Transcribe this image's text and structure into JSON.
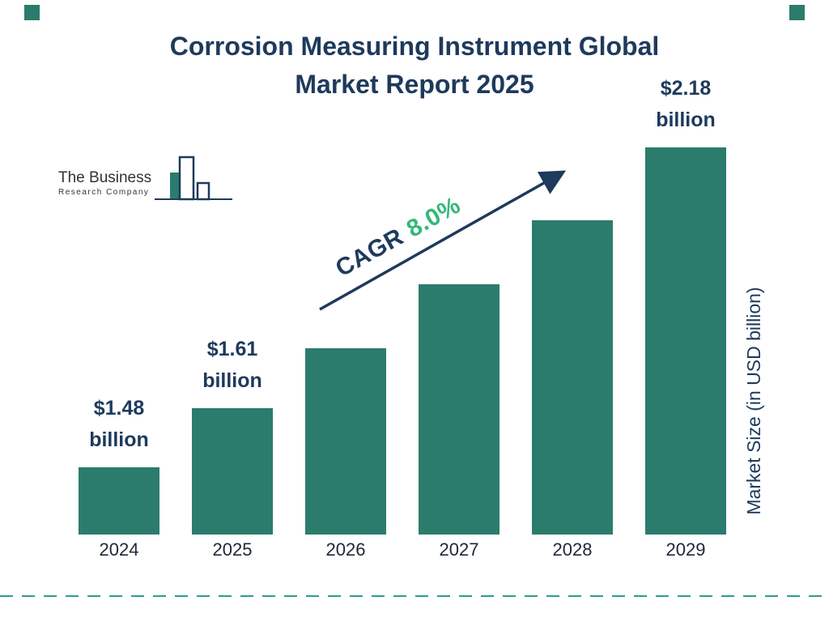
{
  "page": {
    "title_line1": "Corrosion Measuring Instrument Global",
    "title_line2": "Market Report 2025"
  },
  "logo": {
    "line1": "The Business",
    "line2": "Research Company"
  },
  "cagr": {
    "label": "CAGR",
    "value": "8.0%"
  },
  "chart_data": {
    "type": "bar",
    "title": "Corrosion Measuring Instrument Global Market Report 2025",
    "categories": [
      "2024",
      "2025",
      "2026",
      "2027",
      "2028",
      "2029"
    ],
    "values": [
      1.48,
      1.61,
      1.74,
      1.88,
      2.02,
      2.18
    ],
    "unit": "USD billion",
    "ylabel": "Market Size (in USD billion)",
    "cagr": "8.0%",
    "bar_color": "#2B7C6C",
    "legend": "none",
    "grid": "off",
    "labels": [
      {
        "index": 0,
        "amount": "$1.48",
        "unit": "billion"
      },
      {
        "index": 1,
        "amount": "$1.61",
        "unit": "billion"
      },
      {
        "index": 5,
        "amount": "$2.18",
        "unit": "billion"
      }
    ]
  },
  "colors": {
    "navy": "#1E3A5C",
    "teal": "#2B7C6C",
    "green": "#35B87A",
    "dashed_line": "#2F9D8E"
  }
}
